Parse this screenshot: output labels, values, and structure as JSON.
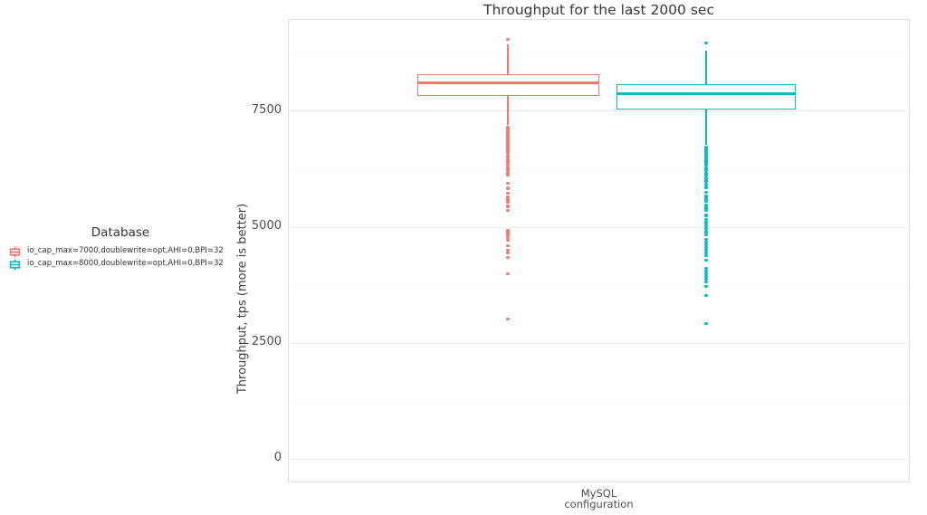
{
  "title": "Throughput for the last 2000 sec",
  "legend": {
    "title": "Database",
    "items": [
      {
        "label": "io_cap_max=7000,doublewrite=opt,AHI=0,BPI=32",
        "color": "#F8766D"
      },
      {
        "label": "io_cap_max=8000,doublewrite=opt,AHI=0,BPI=32",
        "color": "#00BFC4"
      }
    ]
  },
  "chart_data": {
    "type": "boxplot",
    "title": "Throughput for the last 2000 sec",
    "xlabel": "",
    "ylabel": "Throughput, tps (more is better)",
    "categories": [
      "MySQL configuration"
    ],
    "x_tick_label_lines": [
      "MySQL",
      "configuration"
    ],
    "ylim": [
      -495,
      9462
    ],
    "y_ticks": [
      0,
      2500,
      5000,
      7500
    ],
    "y_minor_ticks": [
      1250,
      3750,
      6250,
      8750
    ],
    "grid": "major+minor",
    "legend_position": "left",
    "series": [
      {
        "name": "io_cap_max=7000,doublewrite=opt,AHI=0,BPI=32",
        "color": "#F8766D",
        "median": 8100,
        "q1": 7830,
        "q3": 8300,
        "whisker_low": 7190,
        "whisker_high": 8940,
        "outliers_high": [
          9050
        ],
        "outliers_low": [
          7150,
          7110,
          7075,
          7035,
          6995,
          6955,
          6920,
          6880,
          6840,
          6800,
          6760,
          6725,
          6685,
          6645,
          6605,
          6550,
          6510,
          6450,
          6395,
          6335,
          6275,
          6220,
          6160,
          6120,
          5945,
          5830,
          5730,
          5635,
          5575,
          5520,
          5440,
          5345,
          4915,
          4875,
          4820,
          4760,
          4700,
          4585,
          4490,
          4430,
          4335,
          3985,
          3010
        ]
      },
      {
        "name": "io_cap_max=8000,doublewrite=opt,AHI=0,BPI=32",
        "color": "#00BFC4",
        "median": 7870,
        "q1": 7520,
        "q3": 8080,
        "whisker_low": 6760,
        "whisker_high": 8800,
        "outliers_high": [
          8960
        ],
        "outliers_low": [
          6725,
          6685,
          6645,
          6605,
          6570,
          6530,
          6490,
          6450,
          6415,
          6375,
          6335,
          6275,
          6220,
          6160,
          6120,
          6045,
          5985,
          5925,
          5850,
          5750,
          5655,
          5595,
          5555,
          5460,
          5400,
          5345,
          5245,
          5150,
          5090,
          5015,
          4955,
          4895,
          4820,
          4720,
          4665,
          4605,
          4545,
          4490,
          4430,
          4370,
          4275,
          4100,
          4040,
          3985,
          3925,
          3865,
          3810,
          3710,
          3515,
          2915
        ]
      }
    ]
  }
}
